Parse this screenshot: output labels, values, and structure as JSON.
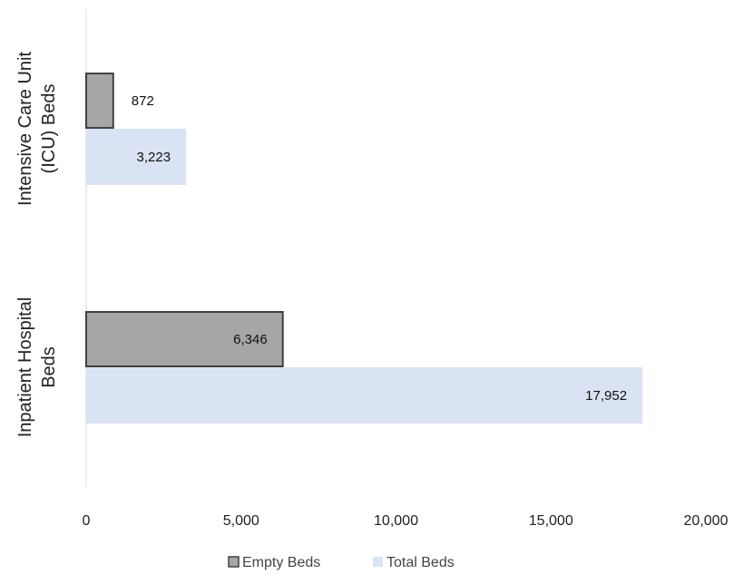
{
  "chart_data": {
    "type": "bar",
    "orientation": "horizontal",
    "categories": [
      "Intensive Care Unit (ICU) Beds",
      "Inpatient Hospital Beds"
    ],
    "category_label_lines": [
      [
        "Intensive Care Unit",
        "(ICU) Beds"
      ],
      [
        "Inpatient Hospital",
        "Beds"
      ]
    ],
    "series": [
      {
        "name": "Empty Beds",
        "values": [
          872,
          6346
        ],
        "labels": [
          "872",
          "6,346"
        ],
        "color": "#a6a6a6",
        "stroke": "#404040"
      },
      {
        "name": "Total Beds",
        "values": [
          3223,
          17952
        ],
        "labels": [
          "3,223",
          "17,952"
        ],
        "color": "#dae3f3",
        "stroke": "none"
      }
    ],
    "xlim": [
      0,
      20000
    ],
    "xticks": [
      0,
      5000,
      10000,
      15000,
      20000
    ],
    "xtick_labels": [
      "0",
      "5,000",
      "10,000",
      "15,000",
      "20,000"
    ],
    "title": "",
    "xlabel": "",
    "ylabel": "",
    "grid": false,
    "legend": "bottom"
  }
}
